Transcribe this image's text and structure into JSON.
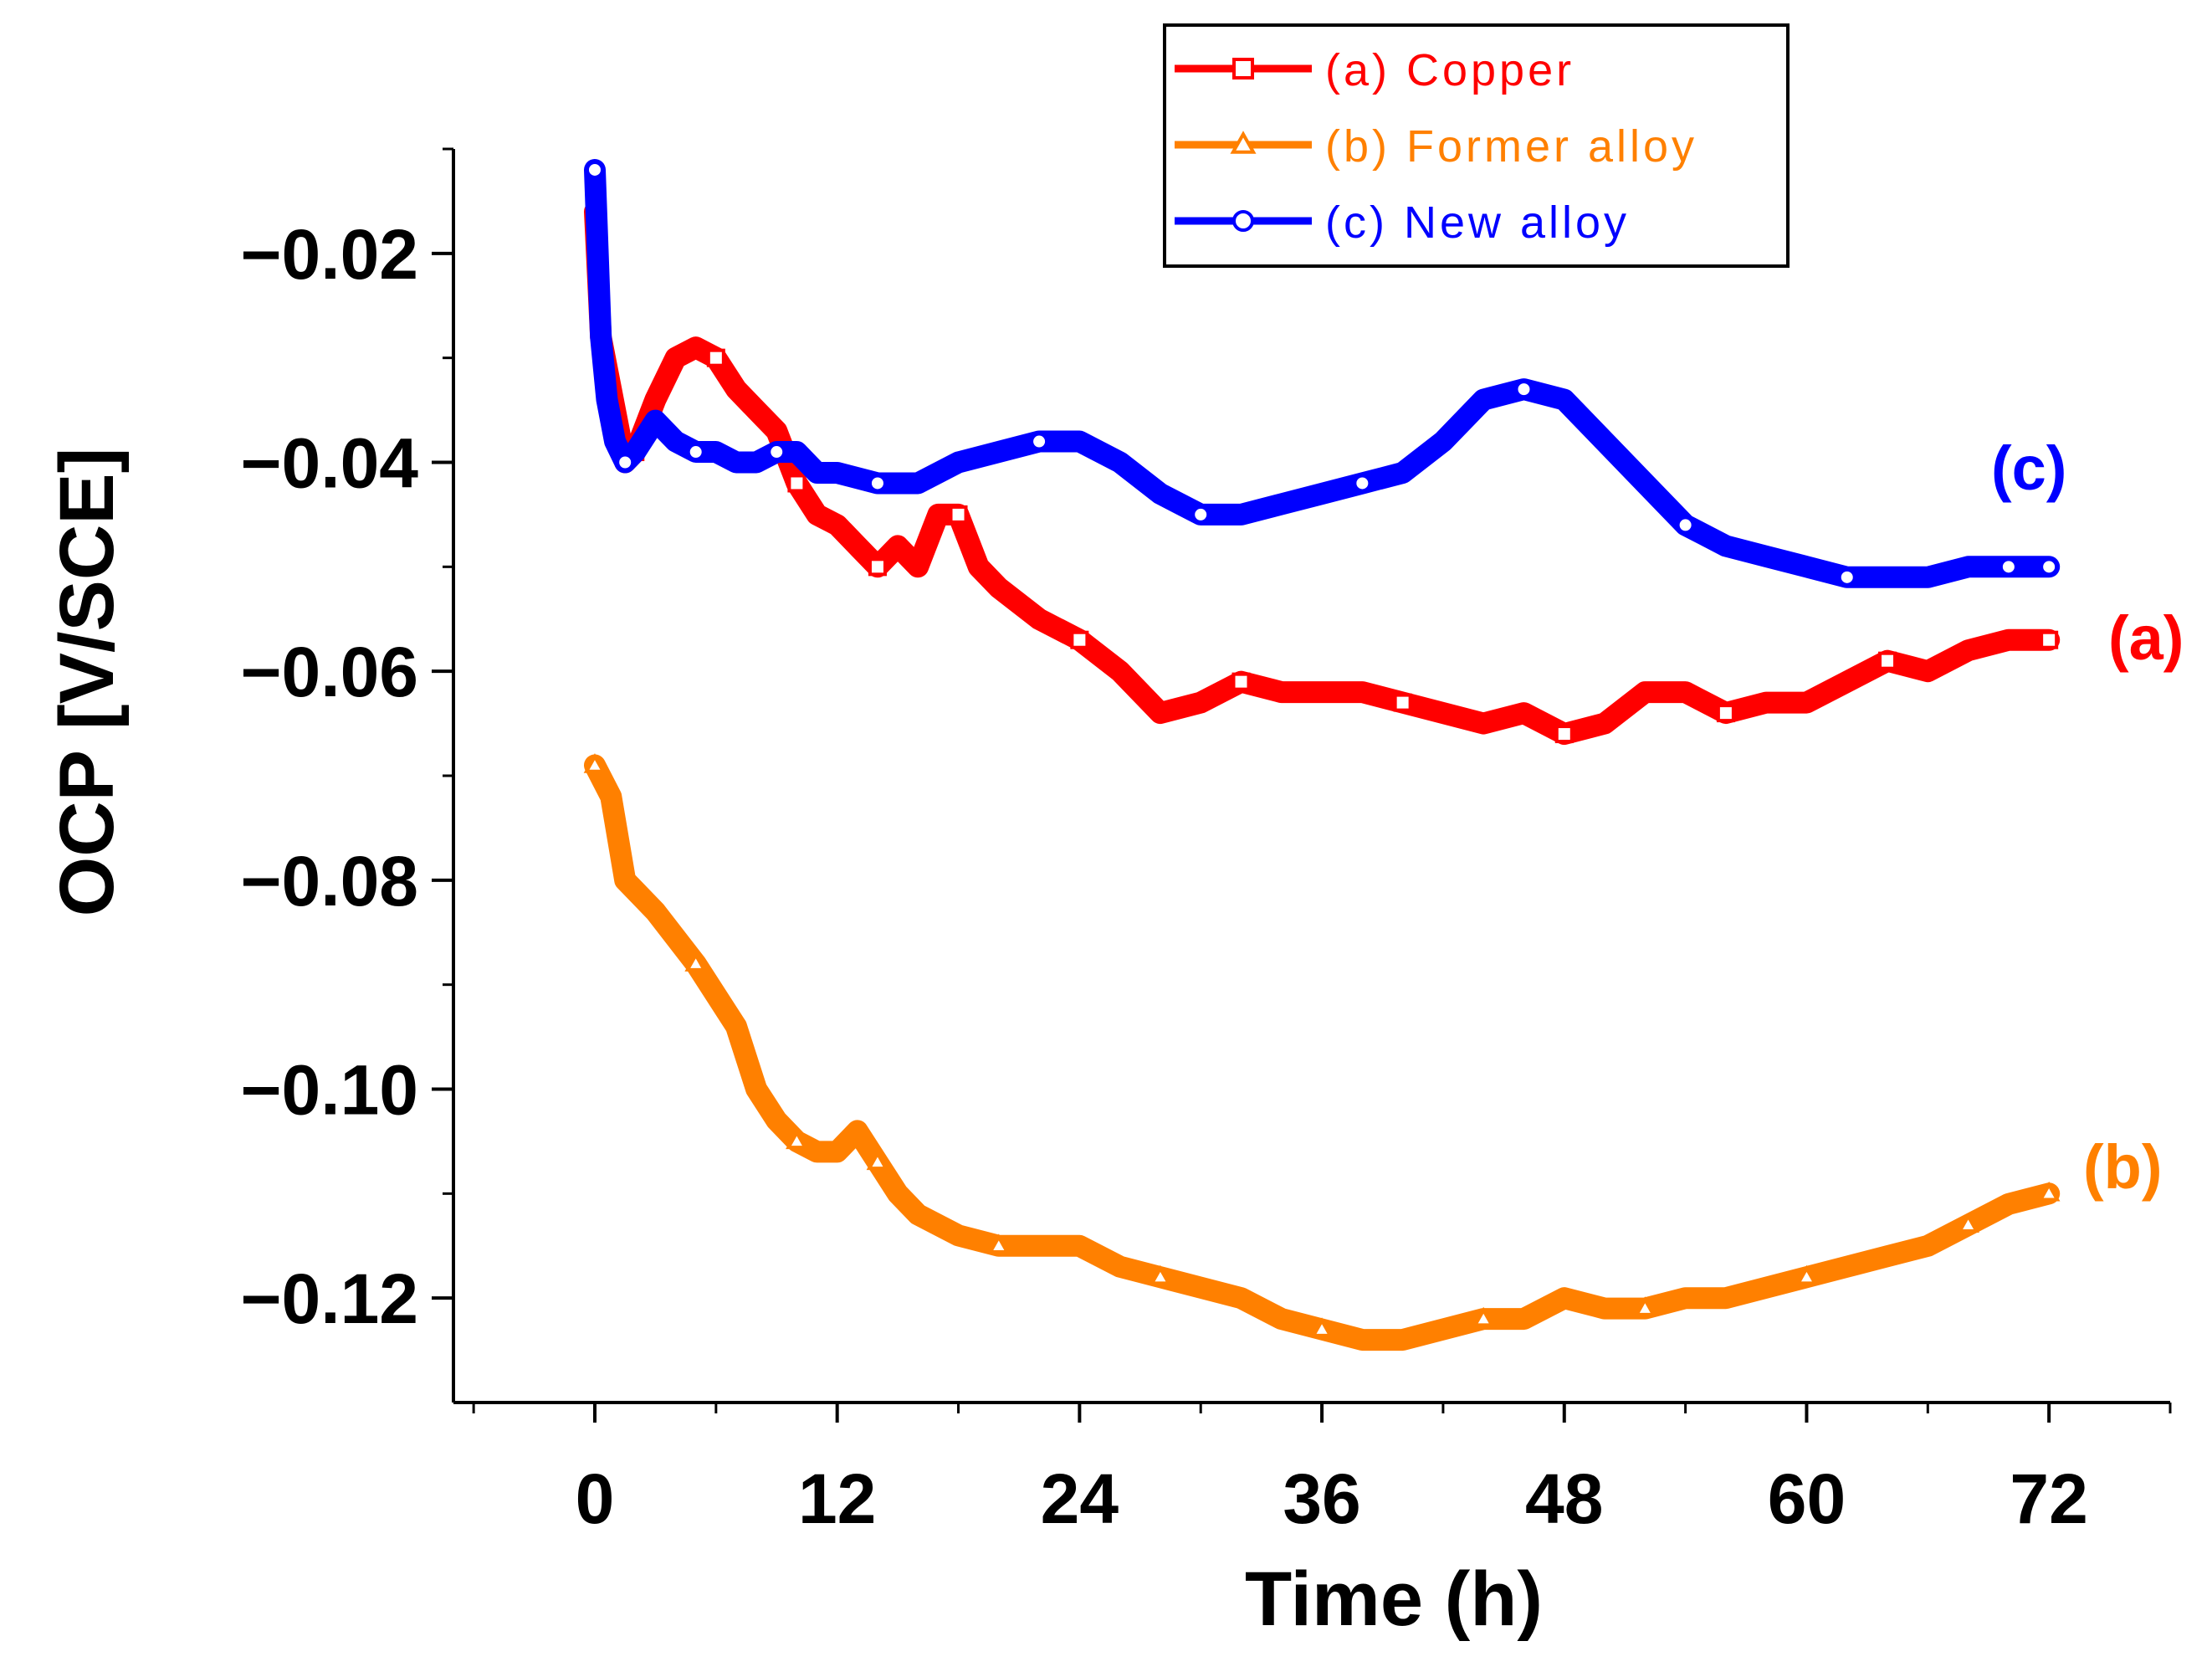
{
  "chart_data": {
    "type": "line",
    "title": "",
    "xlabel": "Time (h)",
    "ylabel": "OCP [V/SCE]",
    "xlim": [
      -7,
      78
    ],
    "ylim": [
      -0.13,
      -0.01
    ],
    "xticks": [
      0,
      12,
      24,
      36,
      48,
      60,
      72
    ],
    "xtick_labels": [
      "0",
      "12",
      "24",
      "36",
      "48",
      "60",
      "72"
    ],
    "yticks": [
      -0.02,
      -0.04,
      -0.06,
      -0.08,
      -0.1,
      -0.12
    ],
    "ytick_labels": [
      "−0.02",
      "−0.04",
      "−0.06",
      "−0.08",
      "−0.10",
      "−0.12"
    ],
    "grid": false,
    "legend_position": "top-right",
    "series": [
      {
        "key": "a",
        "name": "(a) Copper",
        "annotation": "(a)",
        "color": "#ff0000",
        "marker": "square",
        "x": [
          0,
          0.3,
          0.8,
          1.5,
          2.0,
          3.0,
          4.0,
          5.0,
          6.0,
          7.0,
          8.0,
          9.0,
          10.0,
          11.0,
          12.0,
          13.0,
          14.0,
          15.0,
          16.0,
          17.0,
          18.0,
          19.0,
          20.0,
          22.0,
          24.0,
          26.0,
          28.0,
          30.0,
          32.0,
          34.0,
          36.0,
          38.0,
          40.0,
          42.0,
          44.0,
          46.0,
          48.0,
          50.0,
          52.0,
          54.0,
          56.0,
          58.0,
          60.0,
          62.0,
          64.0,
          66.0,
          68.0,
          70.0,
          72.0
        ],
        "y": [
          -0.016,
          -0.028,
          -0.033,
          -0.04,
          -0.039,
          -0.034,
          -0.03,
          -0.029,
          -0.03,
          -0.033,
          -0.035,
          -0.037,
          -0.042,
          -0.045,
          -0.046,
          -0.048,
          -0.05,
          -0.048,
          -0.05,
          -0.045,
          -0.045,
          -0.05,
          -0.052,
          -0.055,
          -0.057,
          -0.06,
          -0.064,
          -0.063,
          -0.061,
          -0.062,
          -0.062,
          -0.062,
          -0.063,
          -0.064,
          -0.065,
          -0.064,
          -0.066,
          -0.065,
          -0.062,
          -0.062,
          -0.064,
          -0.063,
          -0.063,
          -0.061,
          -0.059,
          -0.06,
          -0.058,
          -0.057,
          -0.057
        ]
      },
      {
        "key": "b",
        "name": "(b) Former alloy",
        "annotation": "(b)",
        "color": "#ff8000",
        "marker": "triangle",
        "x": [
          0,
          0.8,
          1.5,
          3.0,
          5.0,
          7.0,
          8.0,
          9.0,
          10.0,
          11.0,
          12.0,
          13.0,
          14.0,
          15.0,
          16.0,
          18.0,
          20.0,
          22.0,
          24.0,
          26.0,
          28.0,
          30.0,
          32.0,
          34.0,
          36.0,
          38.0,
          40.0,
          42.0,
          44.0,
          46.0,
          48.0,
          50.0,
          52.0,
          54.0,
          56.0,
          58.0,
          60.0,
          62.0,
          64.0,
          66.0,
          68.0,
          70.0,
          72.0
        ],
        "y": [
          -0.069,
          -0.072,
          -0.08,
          -0.083,
          -0.088,
          -0.094,
          -0.1,
          -0.103,
          -0.105,
          -0.106,
          -0.106,
          -0.104,
          -0.107,
          -0.11,
          -0.112,
          -0.114,
          -0.115,
          -0.115,
          -0.115,
          -0.117,
          -0.118,
          -0.119,
          -0.12,
          -0.122,
          -0.123,
          -0.124,
          -0.124,
          -0.123,
          -0.122,
          -0.122,
          -0.12,
          -0.121,
          -0.121,
          -0.12,
          -0.12,
          -0.119,
          -0.118,
          -0.117,
          -0.116,
          -0.115,
          -0.113,
          -0.111,
          -0.11
        ]
      },
      {
        "key": "c",
        "name": "(c) New alloy",
        "annotation": "(c)",
        "color": "#0000ff",
        "marker": "circle",
        "x": [
          0,
          0.3,
          0.6,
          1.0,
          1.5,
          2.0,
          3.0,
          4.0,
          5.0,
          6.0,
          7.0,
          8.0,
          9.0,
          10.0,
          11.0,
          12.0,
          14.0,
          16.0,
          18.0,
          20.0,
          22.0,
          24.0,
          26.0,
          28.0,
          30.0,
          32.0,
          34.0,
          36.0,
          38.0,
          40.0,
          42.0,
          44.0,
          46.0,
          48.0,
          50.0,
          52.0,
          54.0,
          56.0,
          58.0,
          60.0,
          62.0,
          64.0,
          66.0,
          68.0,
          70.0,
          72.0
        ],
        "y": [
          -0.012,
          -0.028,
          -0.034,
          -0.038,
          -0.04,
          -0.039,
          -0.036,
          -0.038,
          -0.039,
          -0.039,
          -0.04,
          -0.04,
          -0.039,
          -0.039,
          -0.041,
          -0.041,
          -0.042,
          -0.042,
          -0.04,
          -0.039,
          -0.038,
          -0.038,
          -0.04,
          -0.043,
          -0.045,
          -0.045,
          -0.044,
          -0.043,
          -0.042,
          -0.041,
          -0.038,
          -0.034,
          -0.033,
          -0.034,
          -0.038,
          -0.042,
          -0.046,
          -0.048,
          -0.049,
          -0.05,
          -0.051,
          -0.051,
          -0.051,
          -0.05,
          -0.05,
          -0.05
        ]
      }
    ]
  }
}
